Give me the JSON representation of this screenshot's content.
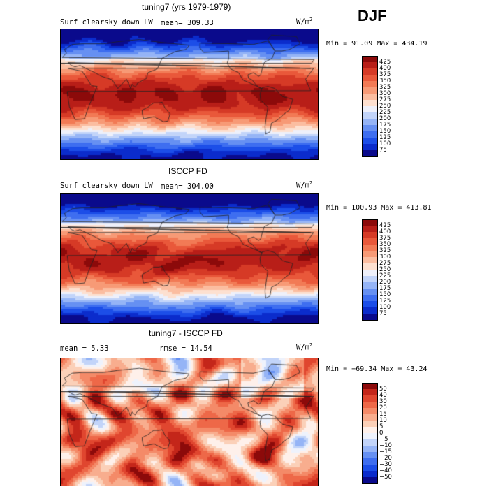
{
  "season": "DJF",
  "units_base": "W/m",
  "units_exp": "2",
  "palettes": {
    "abs": [
      "#0a0a8c",
      "#0b2ccc",
      "#1c4ee8",
      "#3e6ef0",
      "#6690f2",
      "#95b4f6",
      "#c2d4f9",
      "#eef0fa",
      "#fde0d0",
      "#fbbda0",
      "#f79a76",
      "#f27a55",
      "#e9583a",
      "#d63a26",
      "#b81e18",
      "#8c0a0a"
    ],
    "diff": [
      "#0a0a8c",
      "#0b2ccc",
      "#1c4ee8",
      "#3e6ef0",
      "#6690f2",
      "#95b4f6",
      "#c2d4f9",
      "#eef2fc",
      "#fef0ea",
      "#fbd0b8",
      "#f8ad8e",
      "#f48a68",
      "#ee6848",
      "#e0462f",
      "#c4261a",
      "#8c0a0a"
    ]
  },
  "panels": [
    {
      "title": "tuning7 (yrs 1979-1979)",
      "variable": "Surf clearsky down LW",
      "mean_label": "mean=",
      "mean_value": "309.33",
      "minmax": "Min =  91.09 Max = 434.19",
      "palette": "abs",
      "levels": [
        "425",
        "400",
        "375",
        "350",
        "325",
        "300",
        "275",
        "250",
        "225",
        "200",
        "175",
        "150",
        "125",
        "100",
        "75"
      ]
    },
    {
      "title": "ISCCP FD",
      "variable": "Surf clearsky down LW",
      "mean_label": "mean=",
      "mean_value": "304.00",
      "minmax": "Min = 100.93 Max = 413.81",
      "palette": "abs",
      "levels": [
        "425",
        "400",
        "375",
        "350",
        "325",
        "300",
        "275",
        "250",
        "225",
        "200",
        "175",
        "150",
        "125",
        "100",
        "75"
      ]
    },
    {
      "title": "tuning7 - ISCCP FD",
      "mean_label": "mean =",
      "mean_value": "5.33",
      "rmse_label": "rmse =",
      "rmse_value": "14.54",
      "minmax": "Min = −69.34 Max =  43.24",
      "palette": "diff",
      "levels": [
        "50",
        "40",
        "30",
        "20",
        "15",
        "10",
        "5",
        "0",
        "−5",
        "−10",
        "−15",
        "−20",
        "−30",
        "−40",
        "−50"
      ]
    }
  ],
  "chart_data": {
    "type": "heatmap",
    "description_type": "global contour maps",
    "x": "longitude",
    "y": "latitude",
    "maps": [
      {
        "title": "tuning7 (yrs 1979-1979)",
        "variable": "Surf clearsky down LW",
        "mean": 309.33,
        "min": 91.09,
        "max": 434.19,
        "levels": [
          75,
          100,
          125,
          150,
          175,
          200,
          225,
          250,
          275,
          300,
          325,
          350,
          375,
          400,
          425
        ]
      },
      {
        "title": "ISCCP FD",
        "variable": "Surf clearsky down LW",
        "mean": 304.0,
        "min": 100.93,
        "max": 413.81,
        "levels": [
          75,
          100,
          125,
          150,
          175,
          200,
          225,
          250,
          275,
          300,
          325,
          350,
          375,
          400,
          425
        ]
      },
      {
        "title": "tuning7 - ISCCP FD",
        "mean": 5.33,
        "rmse": 14.54,
        "min": -69.34,
        "max": 43.24,
        "levels": [
          -50,
          -40,
          -30,
          -20,
          -15,
          -10,
          -5,
          0,
          5,
          10,
          15,
          20,
          30,
          40,
          50
        ]
      }
    ]
  }
}
